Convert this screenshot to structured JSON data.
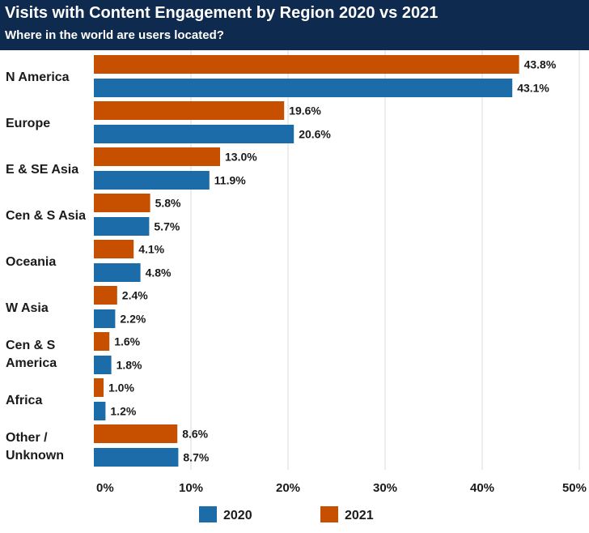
{
  "chart_data": {
    "type": "bar",
    "orientation": "horizontal",
    "title": "Visits with Content Engagement by Region 2020 vs 2021",
    "subtitle": "Where in the world are users located?",
    "categories": [
      [
        "N America"
      ],
      [
        "Europe"
      ],
      [
        "E & SE Asia"
      ],
      [
        "Cen & S Asia"
      ],
      [
        "Oceania"
      ],
      [
        "W Asia"
      ],
      [
        "Cen & S",
        "America"
      ],
      [
        "Africa"
      ],
      [
        "Other /",
        "Unknown"
      ]
    ],
    "series": [
      {
        "name": "2021",
        "color": "#c75000",
        "values": [
          43.8,
          19.6,
          13.0,
          5.8,
          4.1,
          2.4,
          1.6,
          1.0,
          8.6
        ]
      },
      {
        "name": "2020",
        "color": "#1b6ca8",
        "values": [
          43.1,
          20.6,
          11.9,
          5.7,
          4.8,
          2.2,
          1.8,
          1.2,
          8.7
        ]
      }
    ],
    "legend_order": [
      "2020",
      "2021"
    ],
    "xlim": [
      0,
      50
    ],
    "xticks": [
      0,
      10,
      20,
      30,
      40,
      50
    ],
    "tick_suffix": "%",
    "value_suffix": "%",
    "grid": true,
    "legend_position": "bottom"
  }
}
